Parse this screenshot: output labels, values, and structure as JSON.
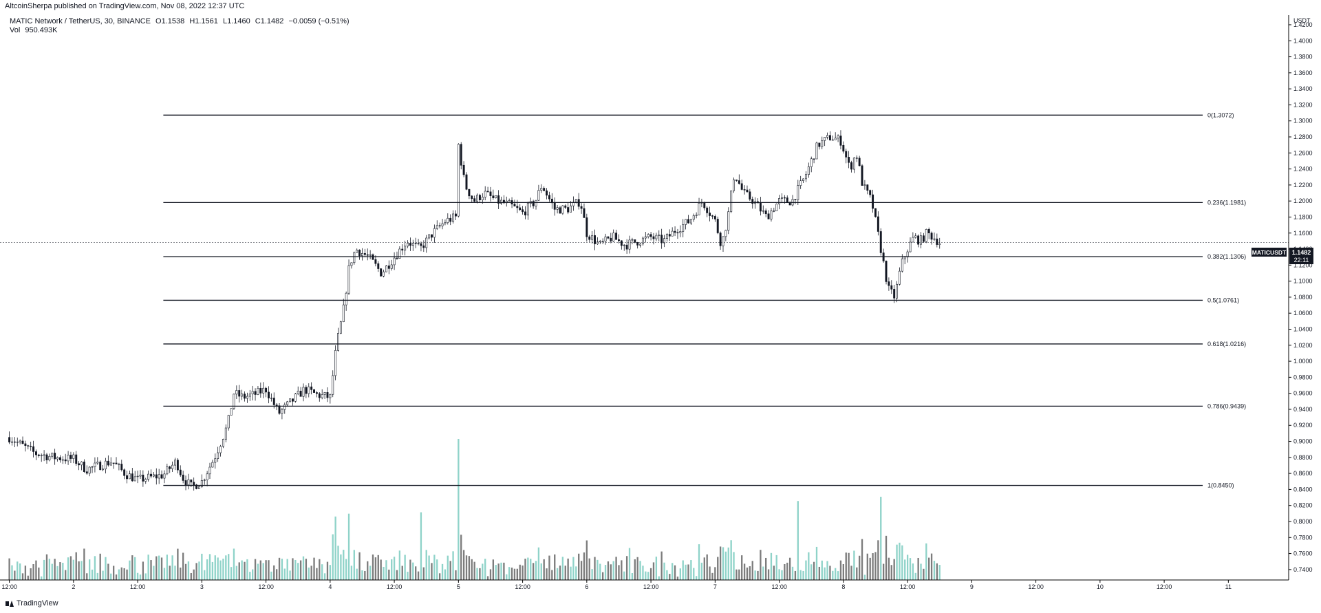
{
  "header": {
    "published": "AltcoinSherpa published on TradingView.com, Nov 08, 2022 12:37 UTC"
  },
  "legend": {
    "symbol": "MATIC Network / TetherUS, 30, BINANCE",
    "open": "O1.1538",
    "high": "H1.1561",
    "low": "L1.1460",
    "close": "C1.1482",
    "change": "−0.0059 (−0.51%)",
    "vol_label": "Vol",
    "vol_value": "950.493K"
  },
  "price_badge": {
    "ticker": "MATICUSDT",
    "price": "1.1482",
    "countdown": "22:11"
  },
  "footer": {
    "brand": "TradingView"
  },
  "colors": {
    "up_volume": "#8fd3c9",
    "down_volume": "#7c7c7c",
    "candle": "#131722",
    "fib_line": "#131722"
  },
  "chart_data": {
    "type": "candlestick",
    "symbol": "MATICUSDT",
    "interval": "30",
    "y_axis": {
      "unit_label": "USDT",
      "ticks": [
        "1.4200",
        "1.4000",
        "1.3800",
        "1.3600",
        "1.3400",
        "1.3200",
        "1.3000",
        "1.2800",
        "1.2600",
        "1.2400",
        "1.2200",
        "1.2000",
        "1.1800",
        "1.1600",
        "1.1400",
        "1.1200",
        "1.1000",
        "1.0800",
        "1.0600",
        "1.0400",
        "1.0200",
        "1.0000",
        "0.9800",
        "0.9600",
        "0.9400",
        "0.9200",
        "0.9000",
        "0.8800",
        "0.8600",
        "0.8400",
        "0.8200",
        "0.8000",
        "0.7800",
        "0.7600",
        "0.7400"
      ],
      "range": [
        0.727,
        1.432
      ]
    },
    "x_axis": {
      "ticks": [
        {
          "label": "12:00",
          "t": 0
        },
        {
          "label": "2",
          "t": 0.5
        },
        {
          "label": "12:00",
          "t": 1
        },
        {
          "label": "3",
          "t": 1.5
        },
        {
          "label": "12:00",
          "t": 2
        },
        {
          "label": "4",
          "t": 2.5
        },
        {
          "label": "12:00",
          "t": 3
        },
        {
          "label": "5",
          "t": 3.5
        },
        {
          "label": "12:00",
          "t": 4
        },
        {
          "label": "6",
          "t": 4.5
        },
        {
          "label": "12:00",
          "t": 5
        },
        {
          "label": "7",
          "t": 5.5
        },
        {
          "label": "12:00",
          "t": 6
        },
        {
          "label": "8",
          "t": 6.5
        },
        {
          "label": "12:00",
          "t": 7
        },
        {
          "label": "9",
          "t": 7.5
        },
        {
          "label": "12:00",
          "t": 8
        },
        {
          "label": "10",
          "t": 8.5
        },
        {
          "label": "12:00",
          "t": 9
        },
        {
          "label": "11",
          "t": 9.5
        }
      ]
    },
    "fibonacci": [
      {
        "label": "0(1.3072)",
        "value": 1.3072
      },
      {
        "label": "0.236(1.1981)",
        "value": 1.1981
      },
      {
        "label": "0.382(1.1306)",
        "value": 1.1306
      },
      {
        "label": "0.5(1.0761)",
        "value": 1.0761
      },
      {
        "label": "0.618(1.0216)",
        "value": 1.0216
      },
      {
        "label": "0.786(0.9439)",
        "value": 0.9439
      },
      {
        "label": "1(0.8450)",
        "value": 0.845
      }
    ],
    "fib_x_range": [
      1.2,
      9.3
    ],
    "last_price": 1.1482,
    "price_path": [
      [
        0.0,
        0.905
      ],
      [
        0.1,
        0.895
      ],
      [
        0.2,
        0.885
      ],
      [
        0.35,
        0.88
      ],
      [
        0.5,
        0.878
      ],
      [
        0.6,
        0.865
      ],
      [
        0.7,
        0.87
      ],
      [
        0.8,
        0.875
      ],
      [
        0.9,
        0.86
      ],
      [
        1.0,
        0.852
      ],
      [
        1.1,
        0.855
      ],
      [
        1.2,
        0.858
      ],
      [
        1.3,
        0.875
      ],
      [
        1.35,
        0.855
      ],
      [
        1.42,
        0.843
      ],
      [
        1.5,
        0.85
      ],
      [
        1.6,
        0.88
      ],
      [
        1.7,
        0.92
      ],
      [
        1.75,
        0.96
      ],
      [
        1.82,
        0.955
      ],
      [
        1.9,
        0.958
      ],
      [
        2.0,
        0.965
      ],
      [
        2.05,
        0.95
      ],
      [
        2.1,
        0.935
      ],
      [
        2.2,
        0.95
      ],
      [
        2.3,
        0.965
      ],
      [
        2.4,
        0.958
      ],
      [
        2.5,
        0.955
      ],
      [
        2.55,
        1.02
      ],
      [
        2.6,
        1.06
      ],
      [
        2.65,
        1.12
      ],
      [
        2.7,
        1.14
      ],
      [
        2.8,
        1.13
      ],
      [
        2.9,
        1.11
      ],
      [
        3.0,
        1.13
      ],
      [
        3.1,
        1.15
      ],
      [
        3.2,
        1.14
      ],
      [
        3.3,
        1.16
      ],
      [
        3.4,
        1.175
      ],
      [
        3.48,
        1.18
      ],
      [
        3.5,
        1.27
      ],
      [
        3.55,
        1.22
      ],
      [
        3.62,
        1.2
      ],
      [
        3.7,
        1.21
      ],
      [
        3.8,
        1.2
      ],
      [
        3.9,
        1.195
      ],
      [
        4.0,
        1.185
      ],
      [
        4.1,
        1.2
      ],
      [
        4.15,
        1.22
      ],
      [
        4.25,
        1.19
      ],
      [
        4.35,
        1.19
      ],
      [
        4.45,
        1.2
      ],
      [
        4.5,
        1.16
      ],
      [
        4.6,
        1.145
      ],
      [
        4.7,
        1.155
      ],
      [
        4.8,
        1.145
      ],
      [
        4.9,
        1.15
      ],
      [
        5.0,
        1.155
      ],
      [
        5.1,
        1.15
      ],
      [
        5.2,
        1.165
      ],
      [
        5.3,
        1.175
      ],
      [
        5.4,
        1.2
      ],
      [
        5.5,
        1.175
      ],
      [
        5.55,
        1.145
      ],
      [
        5.6,
        1.18
      ],
      [
        5.65,
        1.235
      ],
      [
        5.72,
        1.21
      ],
      [
        5.8,
        1.2
      ],
      [
        5.9,
        1.18
      ],
      [
        6.0,
        1.2
      ],
      [
        6.1,
        1.2
      ],
      [
        6.2,
        1.23
      ],
      [
        6.3,
        1.27
      ],
      [
        6.4,
        1.28
      ],
      [
        6.48,
        1.275
      ],
      [
        6.55,
        1.24
      ],
      [
        6.6,
        1.26
      ],
      [
        6.65,
        1.22
      ],
      [
        6.72,
        1.2
      ],
      [
        6.78,
        1.15
      ],
      [
        6.85,
        1.09
      ],
      [
        6.9,
        1.08
      ],
      [
        6.95,
        1.12
      ],
      [
        7.0,
        1.14
      ],
      [
        7.05,
        1.155
      ],
      [
        7.1,
        1.15
      ],
      [
        7.15,
        1.16
      ],
      [
        7.2,
        1.155
      ],
      [
        7.25,
        1.1482
      ]
    ],
    "volume_spikes": [
      {
        "t": 3.5,
        "value": 1.0,
        "up": true
      },
      {
        "t": 6.15,
        "value": 0.56,
        "up": true
      },
      {
        "t": 6.8,
        "value": 0.59,
        "up": true
      },
      {
        "t": 3.2,
        "value": 0.48,
        "up": true
      },
      {
        "t": 2.65,
        "value": 0.47,
        "up": true
      },
      {
        "t": 2.55,
        "value": 0.45,
        "up": true
      }
    ]
  }
}
